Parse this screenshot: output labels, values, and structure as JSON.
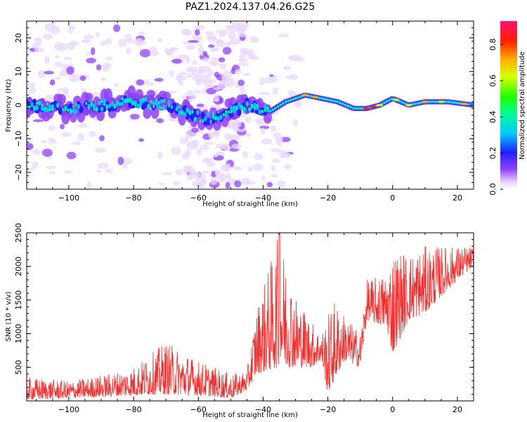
{
  "title": "PAZ1.2024.137.04.26.G25",
  "chart_data": [
    {
      "type": "heatmap",
      "xlabel": "Height of straight line (km)",
      "ylabel": "Frequency (Hz)",
      "xlim": [
        -113,
        25
      ],
      "ylim": [
        -25,
        25
      ],
      "xticks": [
        -100,
        -80,
        -60,
        -40,
        -20,
        0,
        20
      ],
      "yticks": [
        -20,
        -10,
        0,
        10,
        20
      ],
      "colorbar": {
        "label": "Normalized spectral amplitude",
        "range": [
          0.0,
          0.93
        ],
        "ticks": [
          0.0,
          0.2,
          0.4,
          0.6,
          0.8
        ],
        "colormap": "gist_rainbow_r"
      },
      "ridge": [
        {
          "x": -113,
          "y": 0
        },
        {
          "x": -100,
          "y": -1
        },
        {
          "x": -90,
          "y": 0
        },
        {
          "x": -80,
          "y": 1
        },
        {
          "x": -70,
          "y": 0
        },
        {
          "x": -65,
          "y": -2
        },
        {
          "x": -58,
          "y": -4
        },
        {
          "x": -52,
          "y": -3
        },
        {
          "x": -45,
          "y": 0
        },
        {
          "x": -38,
          "y": -2
        },
        {
          "x": -33,
          "y": 1
        },
        {
          "x": -27,
          "y": 3
        },
        {
          "x": -22,
          "y": 2
        },
        {
          "x": -17,
          "y": 1
        },
        {
          "x": -12,
          "y": -1
        },
        {
          "x": -8,
          "y": -1
        },
        {
          "x": -4,
          "y": 0
        },
        {
          "x": 0,
          "y": 2
        },
        {
          "x": 5,
          "y": 0
        },
        {
          "x": 10,
          "y": 1
        },
        {
          "x": 17,
          "y": 1
        },
        {
          "x": 25,
          "y": 0
        }
      ]
    },
    {
      "type": "line",
      "xlabel": "Height of straight line (km)",
      "ylabel": "SNR (10 * v/v)",
      "xlim": [
        -113,
        25
      ],
      "ylim": [
        0,
        2500
      ],
      "xticks": [
        -100,
        -80,
        -60,
        -40,
        -20,
        0,
        20
      ],
      "yticks": [
        500,
        1000,
        1500,
        2000,
        2500
      ],
      "line_color": "#ee3030",
      "envelope": [
        {
          "x": -113,
          "lo": 20,
          "hi": 350
        },
        {
          "x": -100,
          "lo": 40,
          "hi": 300
        },
        {
          "x": -90,
          "lo": 60,
          "hi": 380
        },
        {
          "x": -80,
          "lo": 80,
          "hi": 500
        },
        {
          "x": -70,
          "lo": 100,
          "hi": 880
        },
        {
          "x": -60,
          "lo": 80,
          "hi": 600
        },
        {
          "x": -50,
          "lo": 40,
          "hi": 400
        },
        {
          "x": -45,
          "lo": 150,
          "hi": 450
        },
        {
          "x": -42,
          "lo": 400,
          "hi": 1400
        },
        {
          "x": -35,
          "lo": 500,
          "hi": 2500
        },
        {
          "x": -30,
          "lo": 500,
          "hi": 1600
        },
        {
          "x": -25,
          "lo": 500,
          "hi": 1200
        },
        {
          "x": -22,
          "lo": 600,
          "hi": 1000
        },
        {
          "x": -20,
          "lo": 100,
          "hi": 1300
        },
        {
          "x": -18,
          "lo": 300,
          "hi": 1500
        },
        {
          "x": -15,
          "lo": 600,
          "hi": 1300
        },
        {
          "x": -10,
          "lo": 500,
          "hi": 1000
        },
        {
          "x": -8,
          "lo": 1200,
          "hi": 1800
        },
        {
          "x": -2,
          "lo": 1100,
          "hi": 1900
        },
        {
          "x": 0,
          "lo": 700,
          "hi": 2300
        },
        {
          "x": 5,
          "lo": 1200,
          "hi": 2200
        },
        {
          "x": 10,
          "lo": 1300,
          "hi": 2300
        },
        {
          "x": 20,
          "lo": 1800,
          "hi": 2300
        },
        {
          "x": 25,
          "lo": 2000,
          "hi": 2300
        }
      ],
      "spike": {
        "x": -35,
        "y": 2500
      }
    }
  ]
}
